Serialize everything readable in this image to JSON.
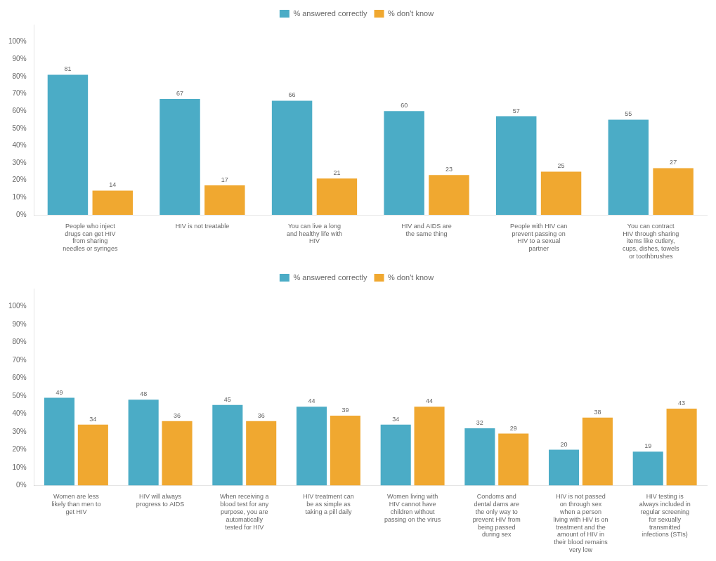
{
  "chart_data": [
    {
      "type": "bar",
      "categories": [
        "People who inject\ndrugs can get HIV\nfrom sharing\nneedles or syringes",
        "HIV is not treatable",
        "You can live a long\nand healthy life with\nHIV",
        "HIV and AIDS are\nthe same thing",
        "People with HIV can\nprevent passing on\nHIV to a sexual\npartner",
        "You can contract\nHIV through sharing\nitems like cutlery,\ncups, dishes, towels\nor toothbrushes"
      ],
      "series": [
        {
          "name": "% answered correctly",
          "color": "#4BACC6",
          "values": [
            81,
            67,
            66,
            60,
            57,
            55
          ]
        },
        {
          "name": "% don't know",
          "color": "#F0A830",
          "values": [
            14,
            17,
            21,
            23,
            25,
            27
          ]
        }
      ],
      "ylim": [
        0,
        110
      ],
      "yticks": [
        {
          "value": 0,
          "label": "0%"
        },
        {
          "value": 10,
          "label": "10%"
        },
        {
          "value": 20,
          "label": "20%"
        },
        {
          "value": 30,
          "label": "30%"
        },
        {
          "value": 40,
          "label": "40%"
        },
        {
          "value": 50,
          "label": "50%"
        },
        {
          "value": 60,
          "label": "60%"
        },
        {
          "value": 70,
          "label": "70%"
        },
        {
          "value": 80,
          "label": "80%"
        },
        {
          "value": 90,
          "label": "90%"
        },
        {
          "value": 100,
          "label": "100%"
        }
      ],
      "grid": false,
      "legend": "top",
      "data_labels": true
    },
    {
      "type": "bar",
      "categories": [
        "Women are less\nlikely than men to\nget HIV",
        "HIV will always\nprogress to AIDS",
        "When receiving a\nblood test for any\npurpose, you are\nautomatically\ntested for HIV",
        "HIV treatment can\nbe as simple as\ntaking a pill daily",
        "Women living with\nHIV cannot have\nchildren without\npassing on the virus",
        "Condoms and\ndental dams are\nthe only way to\nprevent HIV from\nbeing passed\nduring sex",
        "HIV is not passed\non through sex\nwhen a person\nliving with HIV is on\ntreatment and the\namount of HIV in\ntheir blood remains\nvery low",
        "HIV testing is\nalways included in\nregular screening\nfor sexually\ntransmitted\ninfections (STIs)"
      ],
      "series": [
        {
          "name": "% answered correctly",
          "color": "#4BACC6",
          "values": [
            49,
            48,
            45,
            44,
            34,
            32,
            20,
            19
          ]
        },
        {
          "name": "% don't know",
          "color": "#F0A830",
          "values": [
            34,
            36,
            36,
            39,
            44,
            29,
            38,
            43
          ]
        }
      ],
      "ylim": [
        0,
        110
      ],
      "yticks": [
        {
          "value": 0,
          "label": "0%"
        },
        {
          "value": 10,
          "label": "10%"
        },
        {
          "value": 20,
          "label": "20%"
        },
        {
          "value": 30,
          "label": "30%"
        },
        {
          "value": 40,
          "label": "40%"
        },
        {
          "value": 50,
          "label": "50%"
        },
        {
          "value": 60,
          "label": "60%"
        },
        {
          "value": 70,
          "label": "70%"
        },
        {
          "value": 80,
          "label": "80%"
        },
        {
          "value": 90,
          "label": "90%"
        },
        {
          "value": 100,
          "label": "100%"
        }
      ],
      "grid": false,
      "legend": "top",
      "data_labels": true
    }
  ]
}
